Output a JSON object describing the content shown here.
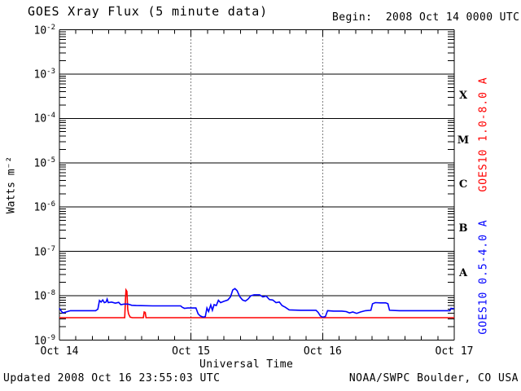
{
  "header": {
    "title": "GOES Xray Flux (5 minute data)",
    "begin": "Begin:  2008 Oct 14 0000 UTC"
  },
  "footer": {
    "updated": "Updated 2008 Oct 16 23:55:03 UTC",
    "source": "NOAA/SWPC Boulder, CO USA"
  },
  "chart_data": {
    "type": "line",
    "title": "GOES Xray Flux (5 minute data)",
    "xlabel": "Universal Time",
    "ylabel": "Watts m⁻²",
    "x_start": "2008 Oct 14 0000 UTC",
    "x_span_hours": 72,
    "x_minor_tick_hours": 3,
    "x_tick_labels": [
      {
        "label": "Oct 14",
        "hour": 0
      },
      {
        "label": "Oct 15",
        "hour": 24
      },
      {
        "label": "Oct 16",
        "hour": 48
      },
      {
        "label": "Oct 17",
        "hour": 72
      }
    ],
    "y_scale": "log",
    "ylim": [
      1e-09,
      0.01
    ],
    "y_tick_base": 10,
    "y_tick_exponents": [
      -2,
      -3,
      -4,
      -5,
      -6,
      -7,
      -8,
      -9
    ],
    "grid": {
      "decade_lines": true,
      "day_lines_dashed_at_hours": [
        24,
        48
      ]
    },
    "flare_classes": [
      {
        "label": "X",
        "center_exp": -3.5
      },
      {
        "label": "M",
        "center_exp": -4.5
      },
      {
        "label": "C",
        "center_exp": -5.5
      },
      {
        "label": "B",
        "center_exp": -6.5
      },
      {
        "label": "A",
        "center_exp": -7.5
      }
    ],
    "series": [
      {
        "name": "GOES10 1.0-8.0 A",
        "color": "#ff0000",
        "points": [
          [
            0,
            3.2e-09
          ],
          [
            4,
            3.2e-09
          ],
          [
            8,
            3.2e-09
          ],
          [
            11.9,
            3.2e-09
          ],
          [
            12.05,
            9e-09
          ],
          [
            12.15,
            1.35e-08
          ],
          [
            12.3,
            1.25e-08
          ],
          [
            12.45,
            5e-09
          ],
          [
            12.6,
            3.9e-09
          ],
          [
            12.9,
            3.3e-09
          ],
          [
            13.3,
            3.2e-09
          ],
          [
            15.3,
            3.2e-09
          ],
          [
            15.45,
            4.3e-09
          ],
          [
            15.65,
            4.2e-09
          ],
          [
            15.8,
            3.2e-09
          ],
          [
            20,
            3.2e-09
          ],
          [
            28,
            3.2e-09
          ],
          [
            36,
            3.2e-09
          ],
          [
            44,
            3.2e-09
          ],
          [
            52,
            3.2e-09
          ],
          [
            60,
            3.2e-09
          ],
          [
            68,
            3.2e-09
          ],
          [
            72,
            3.2e-09
          ]
        ]
      },
      {
        "name": "GOES10 0.5-4.0 A",
        "color": "#0000ff",
        "points": [
          [
            0,
            5.2e-09
          ],
          [
            0.3,
            4.6e-09
          ],
          [
            0.6,
            4.1e-09
          ],
          [
            1.2,
            4.3e-09
          ],
          [
            2,
            4.6e-09
          ],
          [
            4.5,
            4.6e-09
          ],
          [
            6.6,
            4.6e-09
          ],
          [
            7.0,
            5e-09
          ],
          [
            7.3,
            7.8e-09
          ],
          [
            7.6,
            7.2e-09
          ],
          [
            7.9,
            8e-09
          ],
          [
            8.2,
            7e-09
          ],
          [
            8.5,
            7.2e-09
          ],
          [
            8.7,
            8.4e-09
          ],
          [
            8.9,
            7e-09
          ],
          [
            9.5,
            7.2e-09
          ],
          [
            10.2,
            6.8e-09
          ],
          [
            10.8,
            7.1e-09
          ],
          [
            11.2,
            6.3e-09
          ],
          [
            11.8,
            6.5e-09
          ],
          [
            12.5,
            6.5e-09
          ],
          [
            13.2,
            6.1e-09
          ],
          [
            14,
            6e-09
          ],
          [
            17,
            5.9e-09
          ],
          [
            20,
            5.9e-09
          ],
          [
            22.1,
            5.9e-09
          ],
          [
            22.4,
            5.5e-09
          ],
          [
            22.8,
            5.2e-09
          ],
          [
            23.4,
            5.3e-09
          ],
          [
            24.0,
            5.3e-09
          ],
          [
            24.9,
            5.3e-09
          ],
          [
            25.3,
            3.9e-09
          ],
          [
            25.7,
            3.5e-09
          ],
          [
            26.2,
            3.3e-09
          ],
          [
            26.6,
            3.4e-09
          ],
          [
            26.9,
            5.3e-09
          ],
          [
            27.2,
            4.4e-09
          ],
          [
            27.6,
            6.2e-09
          ],
          [
            27.9,
            4.7e-09
          ],
          [
            28.2,
            6.3e-09
          ],
          [
            28.6,
            6e-09
          ],
          [
            29.0,
            7.9e-09
          ],
          [
            29.4,
            7e-09
          ],
          [
            30.0,
            7.5e-09
          ],
          [
            30.7,
            8e-09
          ],
          [
            31.2,
            9.5e-09
          ],
          [
            31.6,
            1.35e-08
          ],
          [
            32.0,
            1.45e-08
          ],
          [
            32.4,
            1.3e-08
          ],
          [
            32.9,
            9.5e-09
          ],
          [
            33.4,
            8e-09
          ],
          [
            33.9,
            7.6e-09
          ],
          [
            34.4,
            8.4e-09
          ],
          [
            34.9,
            1e-08
          ],
          [
            35.5,
            1.05e-08
          ],
          [
            36.5,
            1.05e-08
          ],
          [
            37.1,
            9.4e-09
          ],
          [
            37.7,
            9.8e-09
          ],
          [
            38.3,
            8.2e-09
          ],
          [
            38.9,
            8e-09
          ],
          [
            39.5,
            7e-09
          ],
          [
            40.1,
            7.2e-09
          ],
          [
            40.6,
            6e-09
          ],
          [
            41.2,
            5.5e-09
          ],
          [
            41.9,
            4.8e-09
          ],
          [
            44,
            4.7e-09
          ],
          [
            46.8,
            4.7e-09
          ],
          [
            47.2,
            4.2e-09
          ],
          [
            47.6,
            3.5e-09
          ],
          [
            48.0,
            3.3e-09
          ],
          [
            48.5,
            3.4e-09
          ],
          [
            48.9,
            4.6e-09
          ],
          [
            50,
            4.5e-09
          ],
          [
            51.5,
            4.5e-09
          ],
          [
            52.3,
            4.4e-09
          ],
          [
            52.9,
            4.1e-09
          ],
          [
            53.5,
            4.3e-09
          ],
          [
            54.2,
            4e-09
          ],
          [
            54.9,
            4.3e-09
          ],
          [
            55.8,
            4.6e-09
          ],
          [
            56.8,
            4.7e-09
          ],
          [
            57.1,
            6.6e-09
          ],
          [
            57.6,
            7e-09
          ],
          [
            58.5,
            6.9e-09
          ],
          [
            59.5,
            6.9e-09
          ],
          [
            59.9,
            6.6e-09
          ],
          [
            60.2,
            4.7e-09
          ],
          [
            62,
            4.6e-09
          ],
          [
            66,
            4.6e-09
          ],
          [
            70,
            4.6e-09
          ],
          [
            71.2,
            4.6e-09
          ],
          [
            71.4,
            5.2e-09
          ],
          [
            72,
            5.1e-09
          ]
        ]
      }
    ]
  }
}
